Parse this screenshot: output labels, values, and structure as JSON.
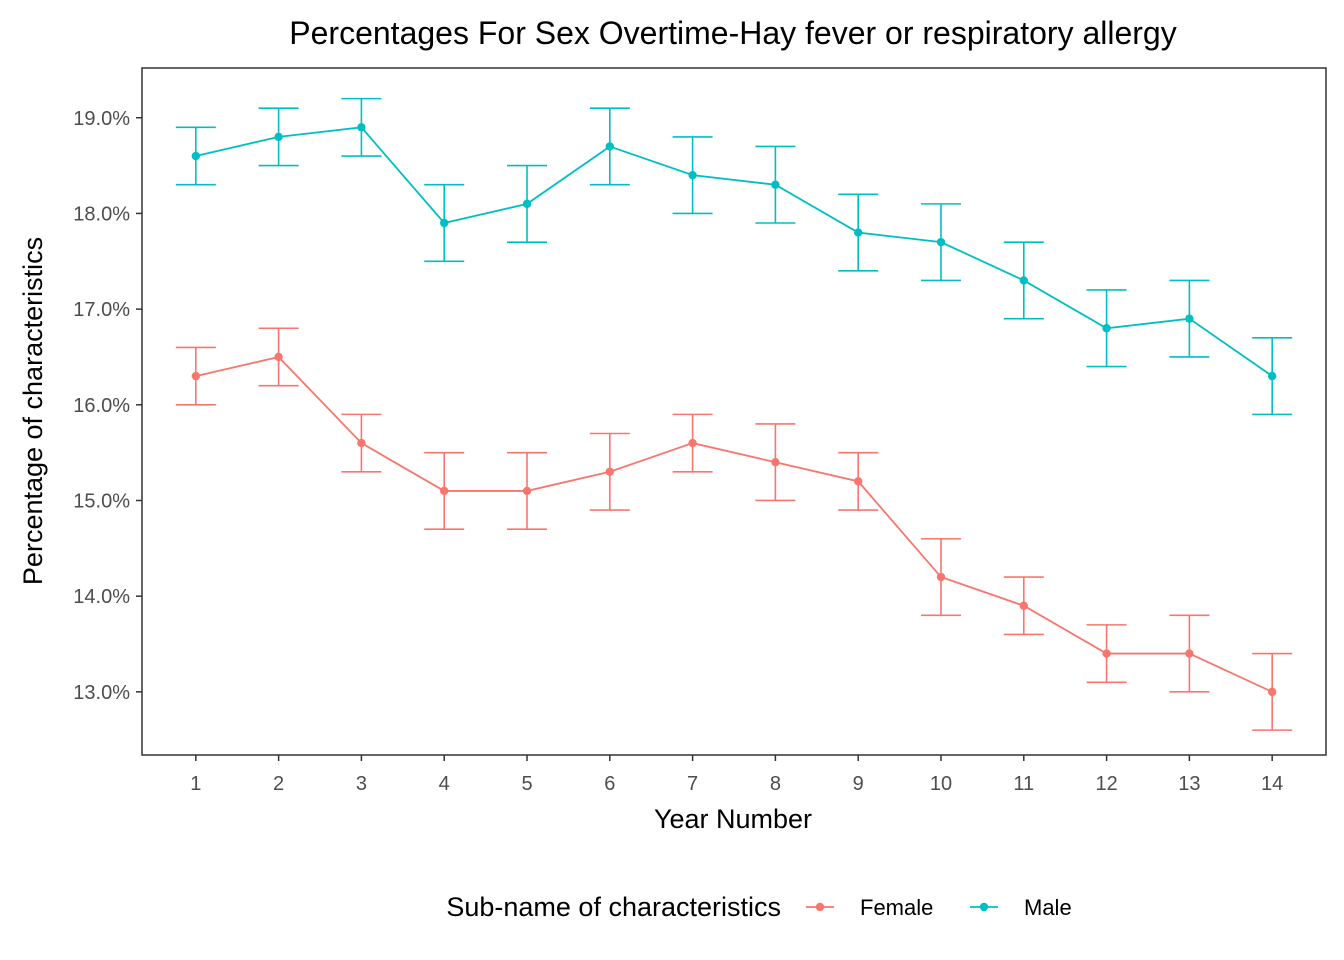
{
  "chart_data": {
    "type": "line",
    "title": "Percentages For Sex Overtime-Hay fever or respiratory allergy",
    "xlabel": "Year Number",
    "ylabel": "Percentage of characteristics",
    "x": [
      1,
      2,
      3,
      4,
      5,
      6,
      7,
      8,
      9,
      10,
      11,
      12,
      13,
      14
    ],
    "x_tick_labels": [
      "1",
      "2",
      "3",
      "4",
      "5",
      "6",
      "7",
      "8",
      "9",
      "10",
      "11",
      "12",
      "13",
      "14"
    ],
    "xlim": [
      0.35,
      14.65
    ],
    "ylim": [
      12.34,
      19.52
    ],
    "y_ticks": [
      13.0,
      14.0,
      15.0,
      16.0,
      17.0,
      18.0,
      19.0
    ],
    "y_tick_labels": [
      "13.0%",
      "14.0%",
      "15.0%",
      "16.0%",
      "17.0%",
      "18.0%",
      "19.0%"
    ],
    "grid": false,
    "error_bars": true,
    "legend": {
      "title": "Sub-name of characteristics",
      "position": "bottom"
    },
    "series": [
      {
        "name": "Female",
        "color": "#F8766D",
        "values": [
          16.3,
          16.5,
          15.6,
          15.1,
          15.1,
          15.3,
          15.6,
          15.4,
          15.2,
          14.2,
          13.9,
          13.4,
          13.4,
          13.0
        ],
        "lower": [
          16.0,
          16.2,
          15.3,
          14.7,
          14.7,
          14.9,
          15.3,
          15.0,
          14.9,
          13.8,
          13.6,
          13.1,
          13.0,
          12.6
        ],
        "upper": [
          16.6,
          16.8,
          15.9,
          15.5,
          15.5,
          15.7,
          15.9,
          15.8,
          15.5,
          14.6,
          14.2,
          13.7,
          13.8,
          13.4
        ]
      },
      {
        "name": "Male",
        "color": "#00BFC4",
        "values": [
          18.6,
          18.8,
          18.9,
          17.9,
          18.1,
          18.7,
          18.4,
          18.3,
          17.8,
          17.7,
          17.3,
          16.8,
          16.9,
          16.3
        ],
        "lower": [
          18.3,
          18.5,
          18.6,
          17.5,
          17.7,
          18.3,
          18.0,
          17.9,
          17.4,
          17.3,
          16.9,
          16.4,
          16.5,
          15.9
        ],
        "upper": [
          18.9,
          19.1,
          19.2,
          18.3,
          18.5,
          19.1,
          18.8,
          18.7,
          18.2,
          18.1,
          17.7,
          17.2,
          17.3,
          16.7
        ]
      }
    ]
  }
}
